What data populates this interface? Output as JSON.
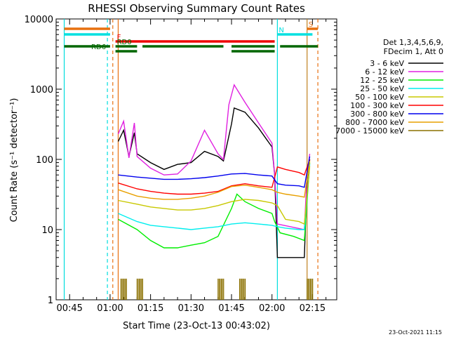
{
  "chart_data": {
    "type": "line",
    "title": "RHESSI Observing Summary Count Rates",
    "xlabel": "Start Time (23-Oct-13 00:43:02)",
    "ylabel": "Count Rate (s⁻¹ detector⁻¹)",
    "yscale": "log",
    "ylim": [
      1,
      10000
    ],
    "xlim": [
      "00:40",
      "02:24"
    ],
    "y_ticks": [
      "1",
      "10",
      "100",
      "1000",
      "10000"
    ],
    "x_ticks": [
      "00:45",
      "01:00",
      "01:15",
      "01:30",
      "01:45",
      "02:00",
      "02:15"
    ],
    "timestamp": "23-Oct-2021 11:15",
    "legend_header": [
      "Det 1,3,4,5,6,9,",
      "FDecim 1, Att 0"
    ],
    "legend_position": "right",
    "series": [
      {
        "name": "3 - 6 keV",
        "color": "#000000",
        "points": [
          [
            "01:03",
            180
          ],
          [
            "01:05",
            260
          ],
          [
            "01:07",
            110
          ],
          [
            "01:09",
            240
          ],
          [
            "01:10",
            120
          ],
          [
            "01:15",
            90
          ],
          [
            "01:20",
            72
          ],
          [
            "01:25",
            85
          ],
          [
            "01:30",
            90
          ],
          [
            "01:35",
            130
          ],
          [
            "01:40",
            110
          ],
          [
            "01:42",
            95
          ],
          [
            "01:45",
            320
          ],
          [
            "01:46",
            540
          ],
          [
            "01:50",
            470
          ],
          [
            "01:55",
            280
          ],
          [
            "02:00",
            150
          ],
          [
            "02:01",
            60
          ],
          [
            "02:02",
            4
          ],
          [
            "02:12",
            4
          ],
          [
            "02:13",
            50
          ],
          [
            "02:14",
            100
          ]
        ]
      },
      {
        "name": "6 - 12 keV",
        "color": "#e020e0",
        "points": [
          [
            "01:03",
            230
          ],
          [
            "01:05",
            350
          ],
          [
            "01:07",
            105
          ],
          [
            "01:09",
            330
          ],
          [
            "01:10",
            110
          ],
          [
            "01:15",
            75
          ],
          [
            "01:20",
            60
          ],
          [
            "01:25",
            62
          ],
          [
            "01:30",
            95
          ],
          [
            "01:35",
            260
          ],
          [
            "01:40",
            120
          ],
          [
            "01:42",
            100
          ],
          [
            "01:44",
            600
          ],
          [
            "01:46",
            1150
          ],
          [
            "01:50",
            650
          ],
          [
            "01:55",
            330
          ],
          [
            "02:00",
            170
          ],
          [
            "02:01",
            60
          ],
          [
            "02:02",
            12
          ],
          [
            "02:12",
            10
          ],
          [
            "02:13",
            60
          ],
          [
            "02:14",
            120
          ]
        ]
      },
      {
        "name": "12 - 25 keV",
        "color": "#00ee00",
        "points": [
          [
            "01:03",
            14
          ],
          [
            "01:10",
            10
          ],
          [
            "01:15",
            7
          ],
          [
            "01:20",
            5.5
          ],
          [
            "01:25",
            5.5
          ],
          [
            "01:30",
            6
          ],
          [
            "01:35",
            6.5
          ],
          [
            "01:40",
            8
          ],
          [
            "01:45",
            20
          ],
          [
            "01:47",
            32
          ],
          [
            "01:50",
            25
          ],
          [
            "01:55",
            20
          ],
          [
            "02:00",
            17
          ],
          [
            "02:01",
            13
          ],
          [
            "02:03",
            9
          ],
          [
            "02:08",
            8
          ],
          [
            "02:12",
            7
          ],
          [
            "02:14",
            90
          ]
        ]
      },
      {
        "name": "25 - 50 keV",
        "color": "#00eeee",
        "points": [
          [
            "01:03",
            17
          ],
          [
            "01:10",
            13
          ],
          [
            "01:15",
            11.5
          ],
          [
            "01:20",
            11
          ],
          [
            "01:25",
            10.5
          ],
          [
            "01:30",
            10
          ],
          [
            "01:35",
            10.5
          ],
          [
            "01:40",
            11
          ],
          [
            "01:45",
            12
          ],
          [
            "01:50",
            12.5
          ],
          [
            "01:55",
            12
          ],
          [
            "02:00",
            11.5
          ],
          [
            "02:02",
            11
          ],
          [
            "02:05",
            10.5
          ],
          [
            "02:10",
            10
          ],
          [
            "02:12",
            10
          ],
          [
            "02:14",
            85
          ]
        ]
      },
      {
        "name": "50 - 100 keV",
        "color": "#c8c800",
        "points": [
          [
            "01:03",
            26
          ],
          [
            "01:10",
            23
          ],
          [
            "01:15",
            21
          ],
          [
            "01:20",
            20
          ],
          [
            "01:25",
            19
          ],
          [
            "01:30",
            19
          ],
          [
            "01:35",
            20
          ],
          [
            "01:40",
            22
          ],
          [
            "01:45",
            25
          ],
          [
            "01:50",
            27
          ],
          [
            "01:55",
            26
          ],
          [
            "02:00",
            24
          ],
          [
            "02:02",
            22
          ],
          [
            "02:05",
            14
          ],
          [
            "02:10",
            13
          ],
          [
            "02:12",
            12
          ],
          [
            "02:14",
            80
          ]
        ]
      },
      {
        "name": "100 - 300 keV",
        "color": "#ff0000",
        "points": [
          [
            "01:03",
            46
          ],
          [
            "01:10",
            38
          ],
          [
            "01:15",
            35
          ],
          [
            "01:20",
            33
          ],
          [
            "01:25",
            32
          ],
          [
            "01:30",
            32
          ],
          [
            "01:35",
            33
          ],
          [
            "01:40",
            35
          ],
          [
            "01:45",
            42
          ],
          [
            "01:50",
            45
          ],
          [
            "01:55",
            42
          ],
          [
            "02:00",
            40
          ],
          [
            "02:02",
            78
          ],
          [
            "02:05",
            72
          ],
          [
            "02:10",
            65
          ],
          [
            "02:12",
            60
          ],
          [
            "02:14",
            100
          ]
        ]
      },
      {
        "name": "300 - 800 keV",
        "color": "#0000ee",
        "points": [
          [
            "01:03",
            60
          ],
          [
            "01:10",
            56
          ],
          [
            "01:15",
            54
          ],
          [
            "01:20",
            52
          ],
          [
            "01:25",
            52
          ],
          [
            "01:30",
            53
          ],
          [
            "01:35",
            55
          ],
          [
            "01:40",
            58
          ],
          [
            "01:45",
            62
          ],
          [
            "01:50",
            63
          ],
          [
            "01:55",
            60
          ],
          [
            "02:00",
            58
          ],
          [
            "02:02",
            45
          ],
          [
            "02:05",
            43
          ],
          [
            "02:10",
            42
          ],
          [
            "02:12",
            40
          ],
          [
            "02:14",
            110
          ]
        ]
      },
      {
        "name": "800 - 7000 keV",
        "color": "#e8a000",
        "points": [
          [
            "01:03",
            37
          ],
          [
            "01:10",
            30
          ],
          [
            "01:15",
            28
          ],
          [
            "01:20",
            27
          ],
          [
            "01:25",
            27
          ],
          [
            "01:30",
            28
          ],
          [
            "01:35",
            30
          ],
          [
            "01:40",
            34
          ],
          [
            "01:45",
            41
          ],
          [
            "01:50",
            43
          ],
          [
            "01:55",
            40
          ],
          [
            "02:00",
            37
          ],
          [
            "02:02",
            34
          ],
          [
            "02:05",
            32
          ],
          [
            "02:10",
            30
          ],
          [
            "02:12",
            29
          ],
          [
            "02:14",
            95
          ]
        ]
      },
      {
        "name": "7000 - 15000 keV",
        "color": "#8b7000",
        "points": [
          [
            "01:04",
            2
          ],
          [
            "01:10",
            2
          ],
          [
            "01:40",
            2
          ],
          [
            "01:48",
            2
          ],
          [
            "02:13",
            2
          ]
        ]
      }
    ],
    "flags": [
      {
        "label": "S",
        "color": "#e87010",
        "segments": [
          [
            "00:43",
            "01:00"
          ],
          [
            "02:13",
            "02:17"
          ]
        ]
      },
      {
        "label": "N",
        "color": "#00e0e0",
        "segments": [
          [
            "00:43",
            "01:00"
          ],
          [
            "02:02",
            "02:15"
          ]
        ]
      },
      {
        "label": "F",
        "color": "#ee0000",
        "segments": [
          [
            "01:02",
            "02:01"
          ]
        ]
      },
      {
        "label": "RD0",
        "color": "#006600",
        "segments": [
          [
            "00:43",
            "01:00"
          ],
          [
            "01:02",
            "01:10"
          ],
          [
            "01:12",
            "01:42"
          ],
          [
            "01:45",
            "02:01"
          ],
          [
            "02:03",
            "02:17"
          ]
        ]
      },
      {
        "label": "RD6",
        "color": "#006600",
        "segments": [
          [
            "01:02",
            "01:10"
          ],
          [
            "01:45",
            "02:01"
          ]
        ]
      }
    ],
    "vertical_lines": [
      {
        "time": "00:43",
        "color": "#00dddd",
        "style": "solid"
      },
      {
        "time": "00:59",
        "color": "#00dddd",
        "style": "dashed"
      },
      {
        "time": "01:01",
        "color": "#e87010",
        "style": "dashed"
      },
      {
        "time": "01:03",
        "color": "#e87010",
        "style": "solid"
      },
      {
        "time": "02:02",
        "color": "#00dddd",
        "style": "solid"
      },
      {
        "time": "02:13",
        "color": "#c08020",
        "style": "solid"
      },
      {
        "time": "02:17",
        "color": "#e87010",
        "style": "dashed"
      }
    ]
  }
}
